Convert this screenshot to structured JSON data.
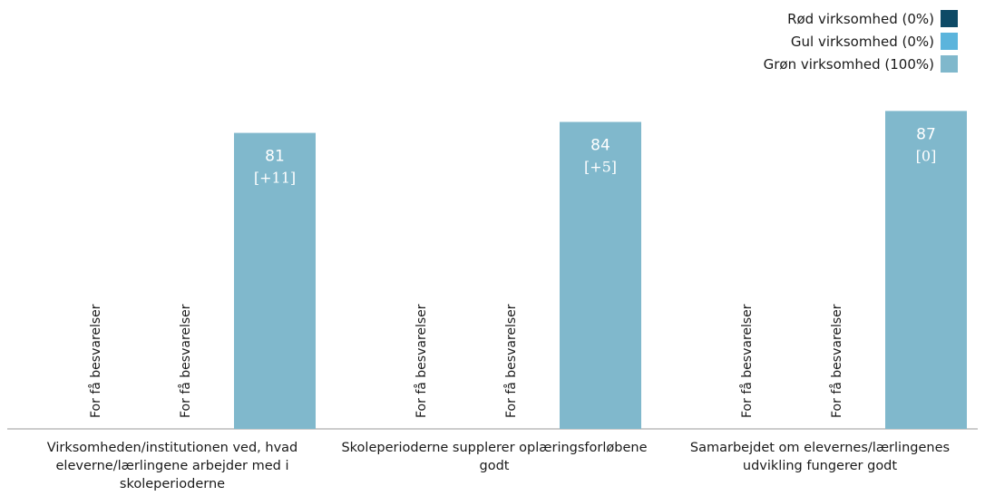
{
  "chart_data": {
    "type": "bar",
    "categories": [
      "Virksomheden/institutionen ved, hvad eleverne/lærlingene arbejder med i skoleperioderne",
      "Skoleperioderne supplerer oplæringsforløbene godt",
      "Samarbejdet om elevernes/lærlingenes udvikling fungerer godt"
    ],
    "series": [
      {
        "name": "Rød virksomhed (0%)",
        "color": "#0d4a66",
        "values": [
          null,
          null,
          null
        ],
        "labels": [
          "For få besvarelser",
          "For få besvarelser",
          "For få besvarelser"
        ]
      },
      {
        "name": "Gul virksomhed (0%)",
        "color": "#5bb4dc",
        "values": [
          null,
          null,
          null
        ],
        "labels": [
          "For få besvarelser",
          "For få besvarelser",
          "For få besvarelser"
        ]
      },
      {
        "name": "Grøn virksomhed (100%)",
        "color": "#80b8cc",
        "values": [
          81,
          84,
          87
        ],
        "changes": [
          "[+11]",
          "[+5]",
          "[0]"
        ]
      }
    ],
    "ylim": [
      0,
      100
    ],
    "legend_position": "top-right",
    "grid": false
  }
}
